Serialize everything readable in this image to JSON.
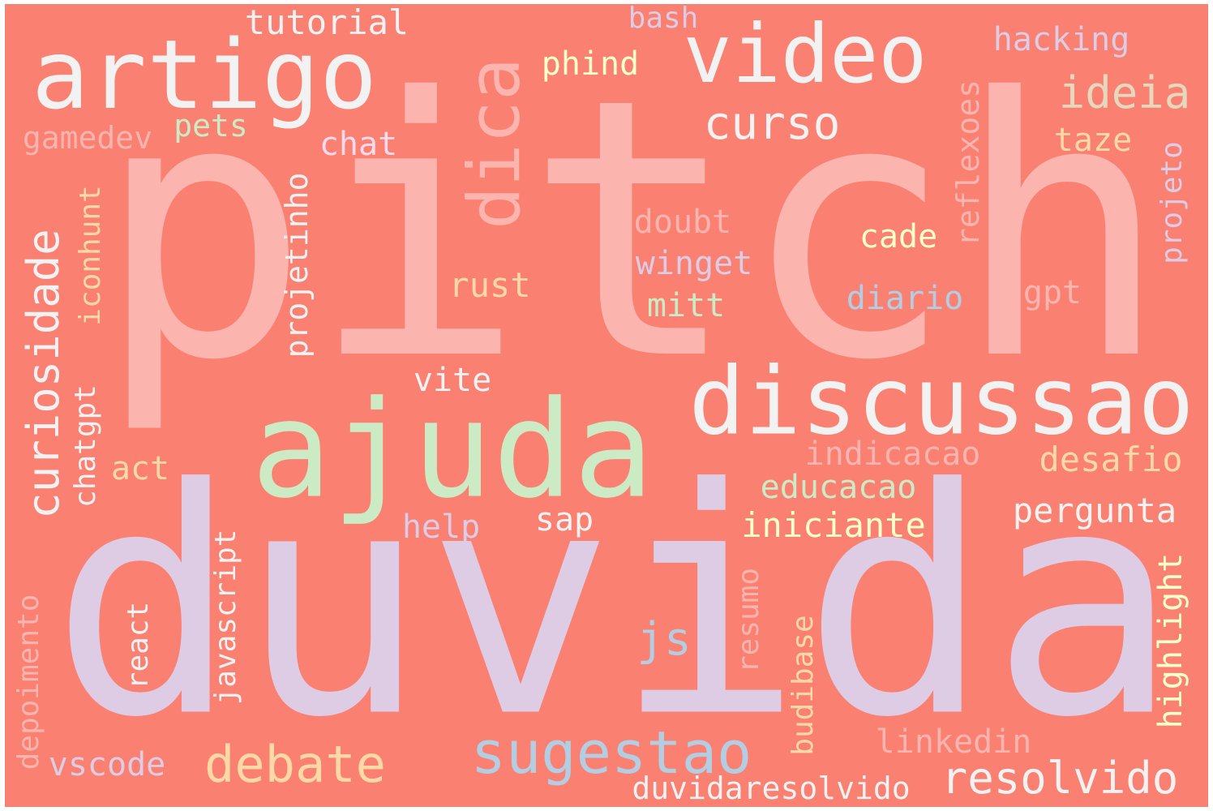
{
  "wordcloud": {
    "background_color": "#FA8072",
    "words": {
      "pitch": "pitch",
      "duvida": "duvida",
      "ajuda": "ajuda",
      "discussao": "discussao",
      "artigo": "artigo",
      "video": "video",
      "dica": "dica",
      "sugestao": "sugestao",
      "debate": "debate",
      "curiosidade": "curiosidade",
      "curso": "curso",
      "resolvido": "resolvido",
      "ideia": "ideia",
      "reflexoes": "reflexoes",
      "tutorial": "tutorial",
      "bash": "bash",
      "hacking": "hacking",
      "phind": "phind",
      "pets": "pets",
      "gamedev": "gamedev",
      "chat": "chat",
      "taze": "taze",
      "projeto": "projeto",
      "projetinho": "projetinho",
      "iconhunt": "iconhunt",
      "chatgpt": "chatgpt",
      "doubt": "doubt",
      "winget": "winget",
      "cade": "cade",
      "rust": "rust",
      "mitt": "mitt",
      "diario": "diario",
      "gpt": "gpt",
      "vite": "vite",
      "indicacao": "indicacao",
      "desafio": "desafio",
      "act": "act",
      "educacao": "educacao",
      "pergunta": "pergunta",
      "help": "help",
      "sap": "sap",
      "iniciante": "iniciante",
      "javascript": "javascript",
      "resumo": "resumo",
      "highlight": "highlight",
      "depoimento": "depoimento",
      "react": "react",
      "js": "js",
      "budibase": "budibase",
      "linkedin": "linkedin",
      "vscode": "vscode",
      "duvidaresolvido": "duvidaresolvido"
    }
  }
}
